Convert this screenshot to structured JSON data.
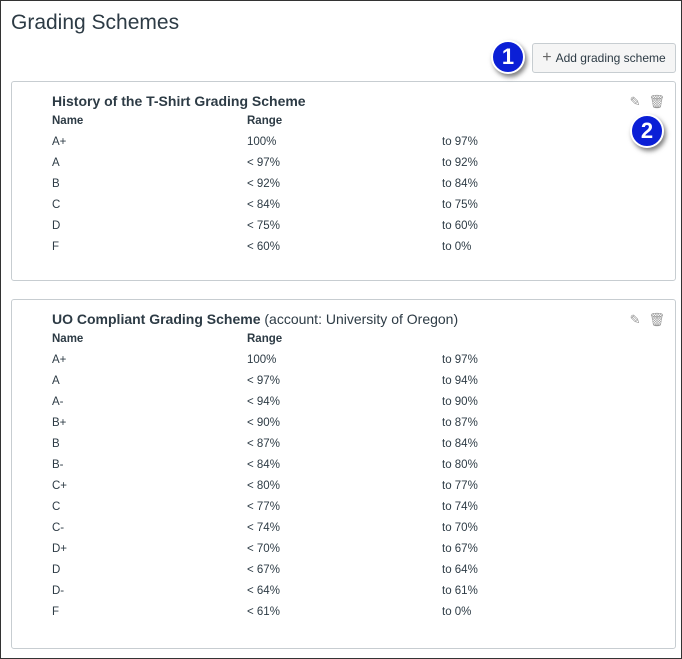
{
  "page_title": "Grading Schemes",
  "add_button": {
    "icon": "plus-icon",
    "label": "Add grading scheme"
  },
  "callouts": [
    "1",
    "2"
  ],
  "schemes": [
    {
      "title": "History of the T-Shirt Grading Scheme",
      "account": "",
      "headers": [
        "Name",
        "Range"
      ],
      "rows": [
        [
          "A+",
          "100%",
          "to 97%"
        ],
        [
          "A",
          "< 97%",
          "to 92%"
        ],
        [
          "B",
          "< 92%",
          "to 84%"
        ],
        [
          "C",
          "< 84%",
          "to 75%"
        ],
        [
          "D",
          "< 75%",
          "to 60%"
        ],
        [
          "F",
          "< 60%",
          "to 0%"
        ]
      ]
    },
    {
      "title": "UO Compliant Grading Scheme",
      "account": "(account: University of Oregon)",
      "headers": [
        "Name",
        "Range"
      ],
      "rows": [
        [
          "A+",
          "100%",
          "to 97%"
        ],
        [
          "A",
          "< 97%",
          "to 94%"
        ],
        [
          "A-",
          "< 94%",
          "to 90%"
        ],
        [
          "B+",
          "< 90%",
          "to 87%"
        ],
        [
          "B",
          "< 87%",
          "to 84%"
        ],
        [
          "B-",
          "< 84%",
          "to 80%"
        ],
        [
          "C+",
          "< 80%",
          "to 77%"
        ],
        [
          "C",
          "< 77%",
          "to 74%"
        ],
        [
          "C-",
          "< 74%",
          "to 70%"
        ],
        [
          "D+",
          "< 70%",
          "to 67%"
        ],
        [
          "D",
          "< 67%",
          "to 64%"
        ],
        [
          "D-",
          "< 64%",
          "to 61%"
        ],
        [
          "F",
          "< 61%",
          "to 0%"
        ]
      ]
    }
  ],
  "colors": {
    "callout": "#0b1fd6"
  }
}
